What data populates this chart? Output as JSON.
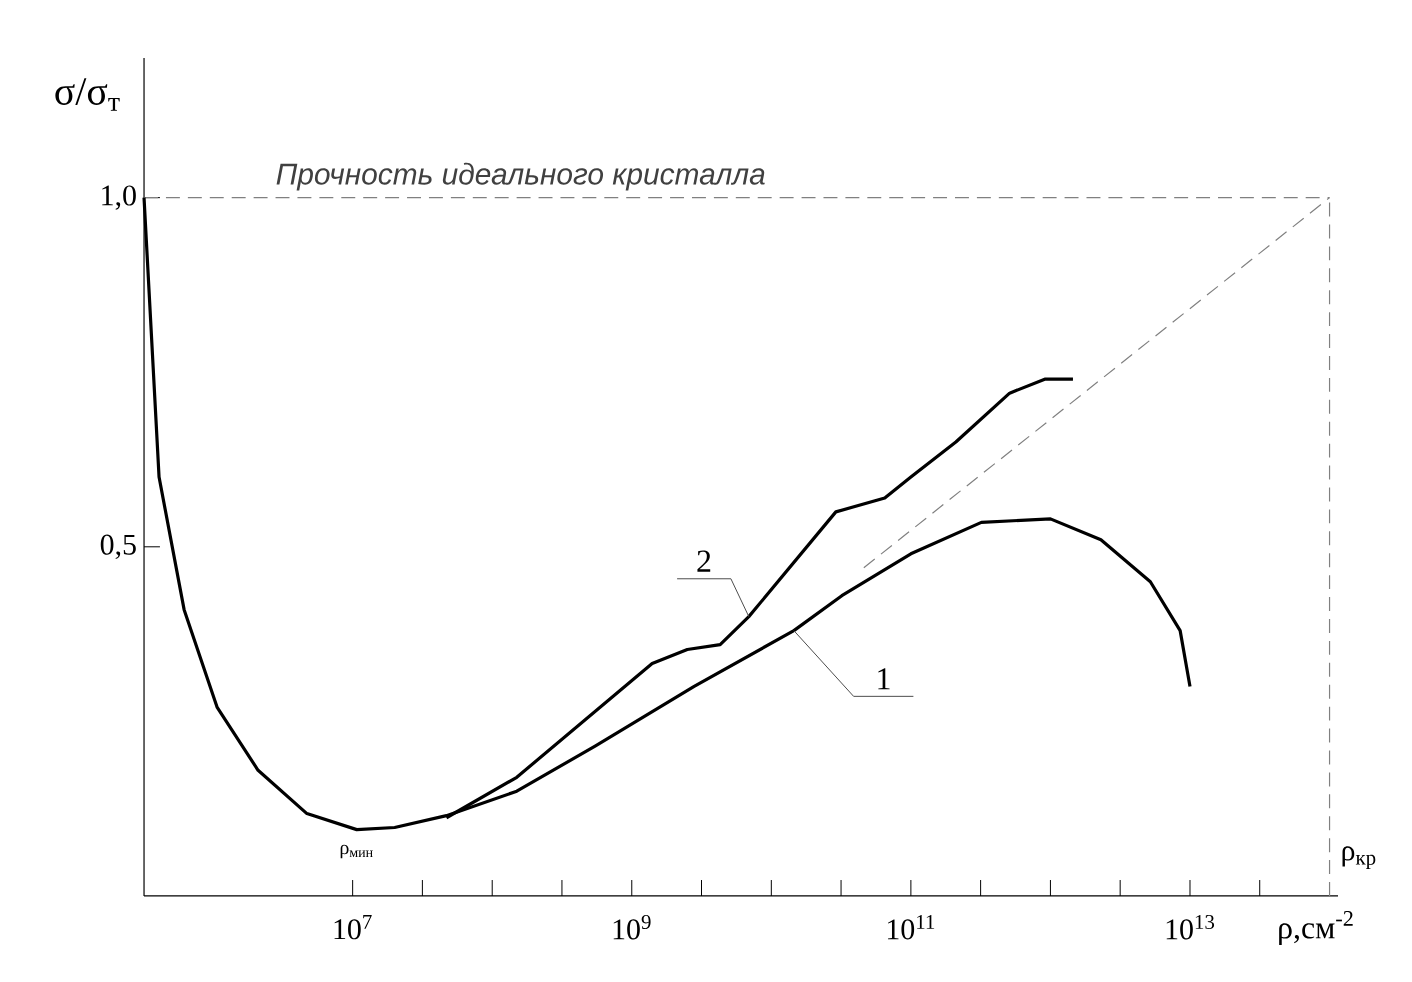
{
  "chart_data": {
    "type": "line",
    "xlabel": "ρ,см$^{-2}$",
    "ylabel": "σ/σ$_{т}$",
    "log": "x",
    "xlim": [
      320000.0,
      115000000000000.0
    ],
    "ylim": [
      0,
      1.2
    ],
    "xticks": [
      {
        "value": 10000000.0,
        "label": "10$^{7}$"
      },
      {
        "value": 31600000.0,
        "label": null
      },
      {
        "value": 100000000.0,
        "label": null
      },
      {
        "value": 316000000.0,
        "label": null
      },
      {
        "value": 1000000000.0,
        "label": "10$^{9}$"
      },
      {
        "value": 3160000000.0,
        "label": null
      },
      {
        "value": 10000000000.0,
        "label": null
      },
      {
        "value": 31600000000.0,
        "label": null
      },
      {
        "value": 100000000000.0,
        "label": "10$^{11}$"
      },
      {
        "value": 316000000000.0,
        "label": null
      },
      {
        "value": 1000000000000.0,
        "label": null
      },
      {
        "value": 3160000000000.0,
        "label": null
      },
      {
        "value": 10000000000000.0,
        "label": "10$^{13}$"
      },
      {
        "value": 31600000000000.0,
        "label": null
      }
    ],
    "yticks": [
      {
        "value": 0.5,
        "label": "0,5"
      },
      {
        "value": 1.0,
        "label": "1,0"
      }
    ],
    "series": [
      {
        "name": "1",
        "color": "#000000",
        "x": [
          320000.0,
          410000.0,
          620000.0,
          1070000.0,
          2100000.0,
          4700000.0,
          10700000.0,
          20000000.0,
          47000000.0,
          150000000.0,
          550000000.0,
          2800000000.0,
          14500000000.0,
          32000000000.0,
          100000000000.0,
          320000000000.0,
          1000000000000.0,
          2300000000000.0,
          5200000000000.0,
          8500000000000.0,
          10000000000000.0
        ],
        "values": [
          1.0,
          0.6,
          0.41,
          0.27,
          0.18,
          0.118,
          0.095,
          0.098,
          0.115,
          0.15,
          0.215,
          0.3,
          0.38,
          0.43,
          0.49,
          0.535,
          0.54,
          0.51,
          0.45,
          0.38,
          0.3
        ]
      },
      {
        "name": "2",
        "color": "#000000",
        "x": [
          47000000.0,
          150000000.0,
          1400000000.0,
          2500000000.0,
          4300000000.0,
          6900000000.0,
          29000000000.0,
          65000000000.0,
          100000000000.0,
          210000000000.0,
          510000000000.0,
          910000000000.0,
          1450000000000.0
        ],
        "values": [
          0.112,
          0.17,
          0.333,
          0.353,
          0.36,
          0.4,
          0.55,
          0.57,
          0.6,
          0.65,
          0.72,
          0.74,
          0.74
        ]
      },
      {
        "color": "#808080",
        "line_style": "dashed",
        "x": [
          46000000000.0,
          100000000000000.0
        ],
        "values": [
          0.47,
          1.0
        ]
      }
    ],
    "ref_lines": [
      {
        "axis": "y",
        "value": 1.0,
        "label": "Прочность идеального кристалла",
        "color": "#808080",
        "line_style": "dashed"
      },
      {
        "axis": "x",
        "value": 100000000000000.0,
        "label": "ρ$_{кр}$",
        "color": "#808080",
        "line_style": "dashed"
      }
    ],
    "annotations": [
      "ρ$_{мин}$"
    ]
  }
}
